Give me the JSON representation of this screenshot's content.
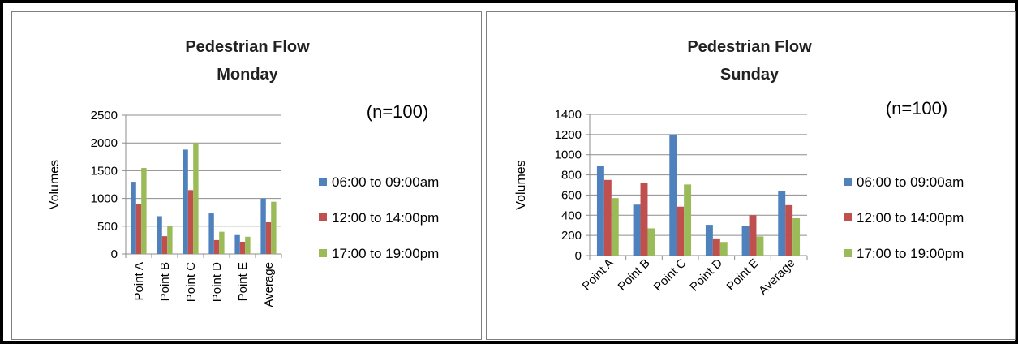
{
  "chart_data": [
    {
      "type": "bar",
      "title": [
        "Pedestrian Flow",
        "Monday"
      ],
      "annotation": "(n=100)",
      "ylabel": "Volumes",
      "xlabel": "",
      "ylim": [
        0,
        2500
      ],
      "yticks": [
        0,
        500,
        1000,
        1500,
        2000,
        2500
      ],
      "categories": [
        "Point A",
        "Point B",
        "Point C",
        "Point D",
        "Point E",
        "Average"
      ],
      "grid": true,
      "legend_position": "right",
      "series": [
        {
          "name": "06:00 to 09:00am",
          "color": "#4f81bd",
          "values": [
            1300,
            680,
            1880,
            730,
            340,
            1000
          ]
        },
        {
          "name": "12:00 to 14:00pm",
          "color": "#c0504d",
          "values": [
            900,
            320,
            1150,
            250,
            220,
            570
          ]
        },
        {
          "name": "17:00 to 19:00pm",
          "color": "#9bbb59",
          "values": [
            1550,
            510,
            2000,
            400,
            310,
            940
          ]
        }
      ]
    },
    {
      "type": "bar",
      "title": [
        "Pedestrian Flow",
        "Sunday"
      ],
      "annotation": "(n=100)",
      "ylabel": "Volumes",
      "xlabel": "",
      "ylim": [
        0,
        1400
      ],
      "yticks": [
        0,
        200,
        400,
        600,
        800,
        1000,
        1200,
        1400
      ],
      "categories": [
        "Point A",
        "Point B",
        "Point C",
        "Point D",
        "Point E",
        "Average"
      ],
      "grid": true,
      "legend_position": "right",
      "series": [
        {
          "name": "06:00 to 09:00am",
          "color": "#4f81bd",
          "values": [
            890,
            505,
            1200,
            305,
            290,
            640
          ]
        },
        {
          "name": "12:00 to 14:00pm",
          "color": "#c0504d",
          "values": [
            750,
            720,
            485,
            170,
            400,
            500
          ]
        },
        {
          "name": "17:00 to 19:00pm",
          "color": "#9bbb59",
          "values": [
            570,
            270,
            705,
            135,
            190,
            370
          ]
        }
      ]
    }
  ]
}
